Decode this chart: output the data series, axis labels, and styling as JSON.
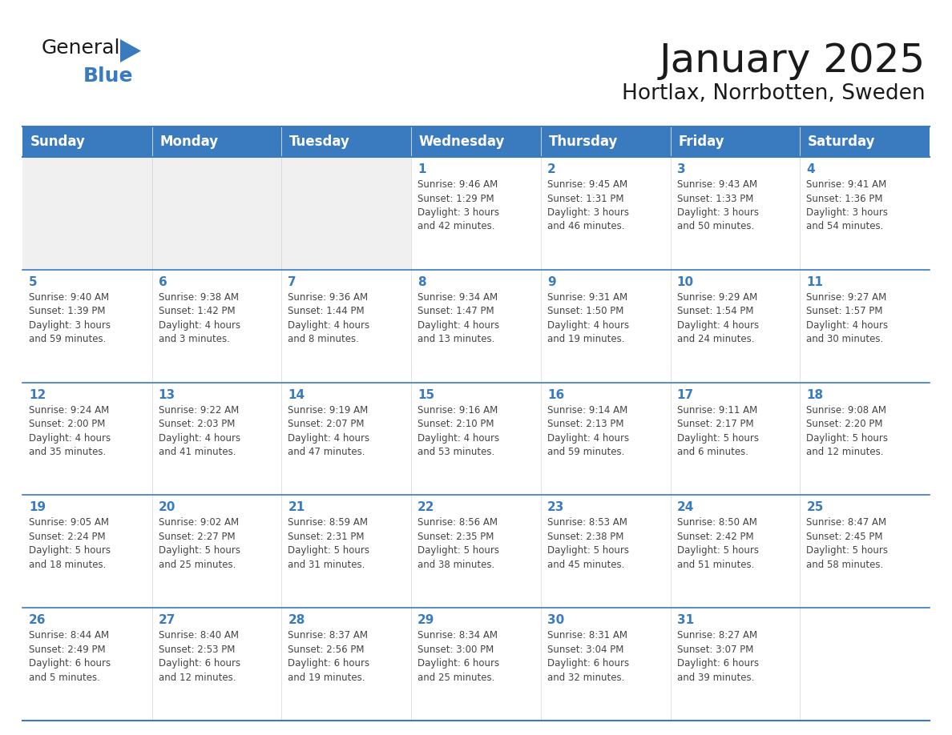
{
  "title": "January 2025",
  "subtitle": "Hortlax, Norrbotten, Sweden",
  "header_bg": "#3a7abf",
  "header_text_color": "#ffffff",
  "cell_bg": "#ffffff",
  "cell_bg_gray": "#f0f0f0",
  "border_color": "#3a7abf",
  "line_color": "#3a7abf",
  "text_color": "#444444",
  "day_num_color": "#3a7abf",
  "days_of_week": [
    "Sunday",
    "Monday",
    "Tuesday",
    "Wednesday",
    "Thursday",
    "Friday",
    "Saturday"
  ],
  "weeks": [
    [
      {
        "day": "",
        "info": ""
      },
      {
        "day": "",
        "info": ""
      },
      {
        "day": "",
        "info": ""
      },
      {
        "day": "1",
        "info": "Sunrise: 9:46 AM\nSunset: 1:29 PM\nDaylight: 3 hours\nand 42 minutes."
      },
      {
        "day": "2",
        "info": "Sunrise: 9:45 AM\nSunset: 1:31 PM\nDaylight: 3 hours\nand 46 minutes."
      },
      {
        "day": "3",
        "info": "Sunrise: 9:43 AM\nSunset: 1:33 PM\nDaylight: 3 hours\nand 50 minutes."
      },
      {
        "day": "4",
        "info": "Sunrise: 9:41 AM\nSunset: 1:36 PM\nDaylight: 3 hours\nand 54 minutes."
      }
    ],
    [
      {
        "day": "5",
        "info": "Sunrise: 9:40 AM\nSunset: 1:39 PM\nDaylight: 3 hours\nand 59 minutes."
      },
      {
        "day": "6",
        "info": "Sunrise: 9:38 AM\nSunset: 1:42 PM\nDaylight: 4 hours\nand 3 minutes."
      },
      {
        "day": "7",
        "info": "Sunrise: 9:36 AM\nSunset: 1:44 PM\nDaylight: 4 hours\nand 8 minutes."
      },
      {
        "day": "8",
        "info": "Sunrise: 9:34 AM\nSunset: 1:47 PM\nDaylight: 4 hours\nand 13 minutes."
      },
      {
        "day": "9",
        "info": "Sunrise: 9:31 AM\nSunset: 1:50 PM\nDaylight: 4 hours\nand 19 minutes."
      },
      {
        "day": "10",
        "info": "Sunrise: 9:29 AM\nSunset: 1:54 PM\nDaylight: 4 hours\nand 24 minutes."
      },
      {
        "day": "11",
        "info": "Sunrise: 9:27 AM\nSunset: 1:57 PM\nDaylight: 4 hours\nand 30 minutes."
      }
    ],
    [
      {
        "day": "12",
        "info": "Sunrise: 9:24 AM\nSunset: 2:00 PM\nDaylight: 4 hours\nand 35 minutes."
      },
      {
        "day": "13",
        "info": "Sunrise: 9:22 AM\nSunset: 2:03 PM\nDaylight: 4 hours\nand 41 minutes."
      },
      {
        "day": "14",
        "info": "Sunrise: 9:19 AM\nSunset: 2:07 PM\nDaylight: 4 hours\nand 47 minutes."
      },
      {
        "day": "15",
        "info": "Sunrise: 9:16 AM\nSunset: 2:10 PM\nDaylight: 4 hours\nand 53 minutes."
      },
      {
        "day": "16",
        "info": "Sunrise: 9:14 AM\nSunset: 2:13 PM\nDaylight: 4 hours\nand 59 minutes."
      },
      {
        "day": "17",
        "info": "Sunrise: 9:11 AM\nSunset: 2:17 PM\nDaylight: 5 hours\nand 6 minutes."
      },
      {
        "day": "18",
        "info": "Sunrise: 9:08 AM\nSunset: 2:20 PM\nDaylight: 5 hours\nand 12 minutes."
      }
    ],
    [
      {
        "day": "19",
        "info": "Sunrise: 9:05 AM\nSunset: 2:24 PM\nDaylight: 5 hours\nand 18 minutes."
      },
      {
        "day": "20",
        "info": "Sunrise: 9:02 AM\nSunset: 2:27 PM\nDaylight: 5 hours\nand 25 minutes."
      },
      {
        "day": "21",
        "info": "Sunrise: 8:59 AM\nSunset: 2:31 PM\nDaylight: 5 hours\nand 31 minutes."
      },
      {
        "day": "22",
        "info": "Sunrise: 8:56 AM\nSunset: 2:35 PM\nDaylight: 5 hours\nand 38 minutes."
      },
      {
        "day": "23",
        "info": "Sunrise: 8:53 AM\nSunset: 2:38 PM\nDaylight: 5 hours\nand 45 minutes."
      },
      {
        "day": "24",
        "info": "Sunrise: 8:50 AM\nSunset: 2:42 PM\nDaylight: 5 hours\nand 51 minutes."
      },
      {
        "day": "25",
        "info": "Sunrise: 8:47 AM\nSunset: 2:45 PM\nDaylight: 5 hours\nand 58 minutes."
      }
    ],
    [
      {
        "day": "26",
        "info": "Sunrise: 8:44 AM\nSunset: 2:49 PM\nDaylight: 6 hours\nand 5 minutes."
      },
      {
        "day": "27",
        "info": "Sunrise: 8:40 AM\nSunset: 2:53 PM\nDaylight: 6 hours\nand 12 minutes."
      },
      {
        "day": "28",
        "info": "Sunrise: 8:37 AM\nSunset: 2:56 PM\nDaylight: 6 hours\nand 19 minutes."
      },
      {
        "day": "29",
        "info": "Sunrise: 8:34 AM\nSunset: 3:00 PM\nDaylight: 6 hours\nand 25 minutes."
      },
      {
        "day": "30",
        "info": "Sunrise: 8:31 AM\nSunset: 3:04 PM\nDaylight: 6 hours\nand 32 minutes."
      },
      {
        "day": "31",
        "info": "Sunrise: 8:27 AM\nSunset: 3:07 PM\nDaylight: 6 hours\nand 39 minutes."
      },
      {
        "day": "",
        "info": ""
      }
    ]
  ],
  "logo_general_color": "#1a1a1a",
  "logo_blue_color": "#3a7abf",
  "logo_triangle_color": "#3a7abf"
}
